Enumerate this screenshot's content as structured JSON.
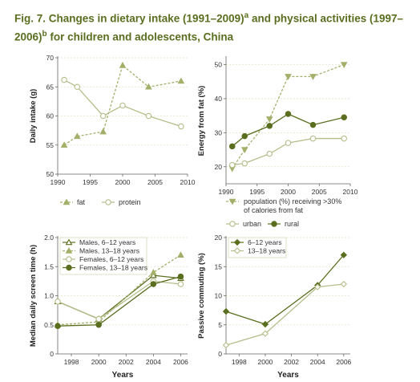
{
  "figure": {
    "title_main": "Fig. 7. Changes in dietary intake (1991–2009)",
    "title_sup_a": "a",
    "title_mid": " and physical activities (1997–2006)",
    "title_sup_b": "b",
    "title_end": " for children and adolescents, China"
  },
  "colors": {
    "title": "#5a6e1f",
    "dark_olive": "#5a6e1f",
    "light_olive": "#a3b06a",
    "open_marker": "#b5bd8a",
    "grid": "#dfe3c4",
    "axis": "#666666",
    "text": "#333333"
  },
  "chart_data": [
    {
      "id": "diet",
      "type": "line",
      "ylabel": "Daily intake (g)",
      "xlabel": "",
      "xlim": [
        1990,
        2010
      ],
      "ylim": [
        50,
        70
      ],
      "xticks": [
        1990,
        1995,
        2000,
        2005,
        2010
      ],
      "yticks": [
        50,
        55,
        60,
        65,
        70
      ],
      "legend": "bottom",
      "series": [
        {
          "name": "fat",
          "marker": "filled-triangle",
          "dashed": true,
          "color": "#a3b06a",
          "x": [
            1991,
            1993,
            1997,
            2000,
            2004,
            2009
          ],
          "y": [
            55.0,
            56.5,
            57.3,
            68.7,
            65.0,
            66.0
          ]
        },
        {
          "name": "protein",
          "marker": "open-circle",
          "dashed": false,
          "color": "#b5bd8a",
          "x": [
            1991,
            1993,
            1997,
            2000,
            2004,
            2009
          ],
          "y": [
            66.2,
            65.0,
            60.0,
            61.8,
            60.0,
            58.2
          ]
        }
      ]
    },
    {
      "id": "energy",
      "type": "line",
      "ylabel": "Energy from fat (%)",
      "xlabel": "",
      "xlim": [
        1990,
        2010
      ],
      "ylim": [
        15,
        52
      ],
      "xticks": [
        1990,
        1995,
        2000,
        2005,
        2010
      ],
      "yticks": [
        20,
        30,
        40,
        50
      ],
      "legend": "bottom",
      "series": [
        {
          "name": "population (%) receiving >30% of calories from fat",
          "marker": "down-triangle",
          "dashed": true,
          "color": "#a3b06a",
          "x": [
            1991,
            1993,
            1997,
            2000,
            2004,
            2009
          ],
          "y": [
            19.5,
            25.0,
            34.0,
            46.5,
            46.5,
            50.0
          ]
        },
        {
          "name": "urban",
          "marker": "open-circle",
          "dashed": false,
          "color": "#b5bd8a",
          "x": [
            1991,
            1993,
            1997,
            2000,
            2004,
            2009
          ],
          "y": [
            20.5,
            21.0,
            23.8,
            27.0,
            28.3,
            28.3
          ]
        },
        {
          "name": "rural",
          "marker": "filled-circle",
          "dashed": false,
          "color": "#5a6e1f",
          "x": [
            1991,
            1993,
            1997,
            2000,
            2004,
            2009
          ],
          "y": [
            26.0,
            29.0,
            32.0,
            35.5,
            32.3,
            34.5
          ]
        }
      ]
    },
    {
      "id": "screen",
      "type": "line",
      "ylabel": "Median daily screen time (h)",
      "xlabel": "Years",
      "xlim": [
        1997,
        2006.5
      ],
      "ylim": [
        0,
        2.0
      ],
      "xticks": [
        1998,
        2000,
        2002,
        2004,
        2006
      ],
      "yticks": [
        0,
        0.5,
        1.0,
        1.5,
        2.0
      ],
      "ytick_labels": [
        "0",
        "0.5",
        "1.0",
        "1.5",
        "2.0"
      ],
      "legend": "top-left",
      "series": [
        {
          "name": "Males, 6–12 years",
          "marker": "open-triangle",
          "dashed": false,
          "color": "#5a6e1f",
          "x": [
            1997,
            2000,
            2004,
            2006
          ],
          "y": [
            0.9,
            0.6,
            1.35,
            1.3
          ]
        },
        {
          "name": "Males, 13–18 years",
          "marker": "filled-triangle",
          "dashed": true,
          "color": "#a3b06a",
          "x": [
            1997,
            2000,
            2004,
            2006
          ],
          "y": [
            0.5,
            0.55,
            1.4,
            1.7
          ]
        },
        {
          "name": "Females, 6–12 years",
          "marker": "open-circle",
          "dashed": false,
          "color": "#b5bd8a",
          "x": [
            1997,
            2000,
            2004,
            2006
          ],
          "y": [
            0.9,
            0.6,
            1.25,
            1.2
          ]
        },
        {
          "name": "Females, 13–18 years",
          "marker": "filled-circle",
          "dashed": false,
          "color": "#5a6e1f",
          "x": [
            1997,
            2000,
            2004,
            2006
          ],
          "y": [
            0.48,
            0.5,
            1.2,
            1.33
          ]
        }
      ]
    },
    {
      "id": "commute",
      "type": "line",
      "ylabel": "Passive commuting (%)",
      "xlabel": "Years",
      "xlim": [
        1997,
        2006.5
      ],
      "ylim": [
        0,
        20
      ],
      "xticks": [
        1998,
        2000,
        2002,
        2004,
        2006
      ],
      "yticks": [
        0,
        5,
        10,
        15,
        20
      ],
      "legend": "top-left",
      "series": [
        {
          "name": "6–12 years",
          "marker": "filled-diamond",
          "dashed": false,
          "color": "#5a6e1f",
          "x": [
            1997,
            2000,
            2004,
            2006
          ],
          "y": [
            7.3,
            5.1,
            11.8,
            17.0
          ]
        },
        {
          "name": "13–18 years",
          "marker": "open-diamond",
          "dashed": false,
          "color": "#b5bd8a",
          "x": [
            1997,
            2000,
            2004,
            2006
          ],
          "y": [
            1.5,
            3.5,
            11.5,
            12.0
          ]
        }
      ]
    }
  ]
}
